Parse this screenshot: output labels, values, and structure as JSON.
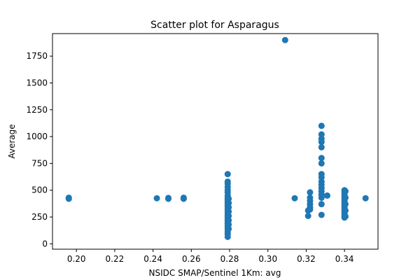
{
  "chart_data": {
    "type": "scatter",
    "title": "Scatter plot for Asparagus",
    "xlabel": "NSIDC SMAP/Sentinel 1Km: avg",
    "ylabel": "Average",
    "xlim": [
      0.1875,
      0.3575
    ],
    "ylim": [
      -50,
      1960
    ],
    "x_ticks": [
      0.2,
      0.22,
      0.24,
      0.26,
      0.28,
      0.3,
      0.32,
      0.34
    ],
    "x_tick_labels": [
      "0.20",
      "0.22",
      "0.24",
      "0.26",
      "0.28",
      "0.30",
      "0.32",
      "0.34"
    ],
    "y_ticks": [
      0,
      250,
      500,
      750,
      1000,
      1250,
      1500,
      1750
    ],
    "y_tick_labels": [
      "0",
      "250",
      "500",
      "750",
      "1000",
      "1250",
      "1500",
      "1750"
    ],
    "grid": false,
    "legend": false,
    "marker_color": "#1f77b4",
    "series": [
      {
        "points": [
          {
            "x": 0.196,
            "y": 420
          },
          {
            "x": 0.196,
            "y": 425
          },
          {
            "x": 0.196,
            "y": 430
          },
          {
            "x": 0.242,
            "y": 425
          },
          {
            "x": 0.248,
            "y": 420
          },
          {
            "x": 0.248,
            "y": 428
          },
          {
            "x": 0.256,
            "y": 420
          },
          {
            "x": 0.256,
            "y": 425
          },
          {
            "x": 0.256,
            "y": 430
          },
          {
            "x": 0.279,
            "y": 650
          },
          {
            "x": 0.279,
            "y": 580
          },
          {
            "x": 0.279,
            "y": 560
          },
          {
            "x": 0.279,
            "y": 530
          },
          {
            "x": 0.279,
            "y": 500
          },
          {
            "x": 0.279,
            "y": 480
          },
          {
            "x": 0.279,
            "y": 450
          },
          {
            "x": 0.279,
            "y": 430
          },
          {
            "x": 0.279,
            "y": 410
          },
          {
            "x": 0.279,
            "y": 390
          },
          {
            "x": 0.279,
            "y": 370
          },
          {
            "x": 0.279,
            "y": 350
          },
          {
            "x": 0.279,
            "y": 330
          },
          {
            "x": 0.279,
            "y": 310
          },
          {
            "x": 0.279,
            "y": 290
          },
          {
            "x": 0.279,
            "y": 270
          },
          {
            "x": 0.279,
            "y": 250
          },
          {
            "x": 0.279,
            "y": 230
          },
          {
            "x": 0.279,
            "y": 210
          },
          {
            "x": 0.279,
            "y": 190
          },
          {
            "x": 0.279,
            "y": 170
          },
          {
            "x": 0.279,
            "y": 150
          },
          {
            "x": 0.279,
            "y": 130
          },
          {
            "x": 0.279,
            "y": 110
          },
          {
            "x": 0.279,
            "y": 90
          },
          {
            "x": 0.279,
            "y": 65
          },
          {
            "x": 0.2795,
            "y": 420
          },
          {
            "x": 0.2795,
            "y": 380
          },
          {
            "x": 0.2795,
            "y": 340
          },
          {
            "x": 0.2795,
            "y": 300
          },
          {
            "x": 0.2795,
            "y": 260
          },
          {
            "x": 0.2795,
            "y": 220
          },
          {
            "x": 0.2795,
            "y": 180
          },
          {
            "x": 0.2795,
            "y": 140
          },
          {
            "x": 0.309,
            "y": 1900
          },
          {
            "x": 0.314,
            "y": 425
          },
          {
            "x": 0.321,
            "y": 310
          },
          {
            "x": 0.321,
            "y": 260
          },
          {
            "x": 0.322,
            "y": 480
          },
          {
            "x": 0.322,
            "y": 430
          },
          {
            "x": 0.322,
            "y": 400
          },
          {
            "x": 0.322,
            "y": 370
          },
          {
            "x": 0.322,
            "y": 340
          },
          {
            "x": 0.322,
            "y": 320
          },
          {
            "x": 0.328,
            "y": 1100
          },
          {
            "x": 0.328,
            "y": 1020
          },
          {
            "x": 0.328,
            "y": 980
          },
          {
            "x": 0.328,
            "y": 950
          },
          {
            "x": 0.328,
            "y": 900
          },
          {
            "x": 0.328,
            "y": 800
          },
          {
            "x": 0.328,
            "y": 750
          },
          {
            "x": 0.328,
            "y": 650
          },
          {
            "x": 0.328,
            "y": 620
          },
          {
            "x": 0.328,
            "y": 580
          },
          {
            "x": 0.328,
            "y": 550
          },
          {
            "x": 0.328,
            "y": 520
          },
          {
            "x": 0.328,
            "y": 490
          },
          {
            "x": 0.328,
            "y": 460
          },
          {
            "x": 0.328,
            "y": 430
          },
          {
            "x": 0.328,
            "y": 370
          },
          {
            "x": 0.328,
            "y": 270
          },
          {
            "x": 0.331,
            "y": 450
          },
          {
            "x": 0.34,
            "y": 500
          },
          {
            "x": 0.34,
            "y": 480
          },
          {
            "x": 0.34,
            "y": 460
          },
          {
            "x": 0.34,
            "y": 440
          },
          {
            "x": 0.34,
            "y": 420
          },
          {
            "x": 0.34,
            "y": 400
          },
          {
            "x": 0.34,
            "y": 380
          },
          {
            "x": 0.34,
            "y": 360
          },
          {
            "x": 0.34,
            "y": 340
          },
          {
            "x": 0.34,
            "y": 320
          },
          {
            "x": 0.34,
            "y": 300
          },
          {
            "x": 0.34,
            "y": 280
          },
          {
            "x": 0.34,
            "y": 260
          },
          {
            "x": 0.34,
            "y": 245
          },
          {
            "x": 0.3405,
            "y": 490
          },
          {
            "x": 0.3405,
            "y": 430
          },
          {
            "x": 0.3405,
            "y": 370
          },
          {
            "x": 0.3405,
            "y": 310
          },
          {
            "x": 0.3405,
            "y": 255
          },
          {
            "x": 0.351,
            "y": 425
          }
        ]
      }
    ]
  }
}
